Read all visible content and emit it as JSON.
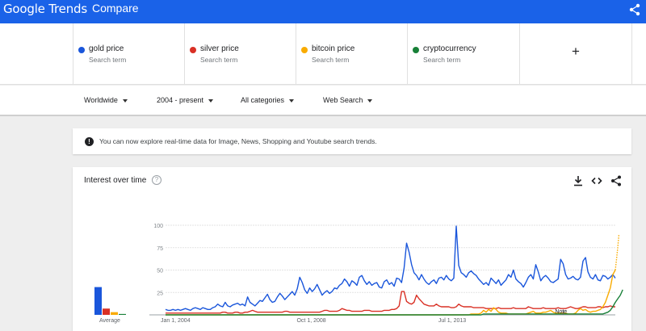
{
  "header": {
    "logo": "Google Trends",
    "title": "Compare"
  },
  "terms": [
    {
      "name": "gold price",
      "type": "Search term",
      "color": "#1a56db"
    },
    {
      "name": "silver price",
      "type": "Search term",
      "color": "#d93025"
    },
    {
      "name": "bitcoin price",
      "type": "Search term",
      "color": "#f9ab00"
    },
    {
      "name": "cryptocurrency",
      "type": "Search term",
      "color": "#188038"
    }
  ],
  "add_term": {
    "icon": "plus-icon",
    "label": "+"
  },
  "filters": {
    "region": "Worldwide",
    "time": "2004 - present",
    "category": "All categories",
    "search_type": "Web Search"
  },
  "banner": {
    "icon": "info-icon",
    "message": "You can now explore real-time data for Image, News, Shopping and Youtube search trends."
  },
  "interest_card": {
    "title": "Interest over time",
    "help_icon": "help-icon",
    "actions": [
      "download-icon",
      "embed-icon",
      "share-icon"
    ]
  },
  "chart_data": {
    "type": "line",
    "ylim": [
      0,
      100
    ],
    "y_ticks": [
      "100",
      "75",
      "50",
      "25"
    ],
    "x_tick_labels": [
      "Jan 1, 2004",
      "Oct 1, 2008",
      "Jul 1, 2013"
    ],
    "annotation": "Note",
    "grid": true,
    "average": {
      "label": "Average",
      "values": [
        31,
        7,
        3,
        1
      ]
    },
    "series": [
      {
        "name": "gold price",
        "color": "#1a56db",
        "values": [
          6,
          5,
          5,
          6,
          5,
          6,
          5,
          6,
          7,
          6,
          5,
          7,
          8,
          7,
          6,
          8,
          7,
          6,
          6,
          8,
          9,
          12,
          10,
          9,
          14,
          10,
          9,
          11,
          12,
          13,
          11,
          12,
          10,
          20,
          14,
          12,
          10,
          13,
          16,
          15,
          19,
          23,
          17,
          14,
          15,
          20,
          24,
          21,
          17,
          20,
          23,
          26,
          22,
          29,
          42,
          36,
          28,
          24,
          30,
          26,
          29,
          34,
          28,
          22,
          25,
          27,
          24,
          26,
          30,
          29,
          33,
          35,
          40,
          37,
          32,
          38,
          36,
          33,
          42,
          44,
          38,
          34,
          37,
          33,
          35,
          36,
          31,
          30,
          37,
          39,
          34,
          36,
          32,
          41,
          40,
          36,
          52,
          80,
          70,
          56,
          47,
          44,
          39,
          45,
          40,
          36,
          34,
          37,
          39,
          35,
          41,
          42,
          39,
          44,
          40,
          38,
          41,
          99,
          55,
          47,
          45,
          42,
          47,
          49,
          46,
          44,
          40,
          37,
          34,
          36,
          33,
          41,
          38,
          35,
          39,
          33,
          36,
          39,
          45,
          42,
          50,
          40,
          37,
          35,
          31,
          36,
          42,
          45,
          40,
          56,
          48,
          38,
          42,
          44,
          41,
          37,
          36,
          38,
          40,
          62,
          57,
          45,
          40,
          41,
          43,
          40,
          39,
          42,
          60,
          64,
          48,
          42,
          40,
          45,
          39,
          38,
          44,
          43,
          40,
          42,
          45,
          41
        ]
      },
      {
        "name": "silver price",
        "color": "#d93025",
        "values": [
          2,
          2,
          2,
          2,
          2,
          2,
          2,
          2,
          2,
          2,
          2,
          2,
          2,
          2,
          2,
          2,
          2,
          2,
          2,
          2,
          2,
          2,
          2,
          3,
          3,
          2,
          2,
          2,
          3,
          3,
          2,
          2,
          3,
          3,
          4,
          5,
          4,
          3,
          3,
          3,
          3,
          3,
          3,
          3,
          3,
          3,
          3,
          3,
          4,
          4,
          3,
          3,
          3,
          3,
          3,
          3,
          3,
          3,
          3,
          3,
          3,
          3,
          3,
          4,
          5,
          5,
          4,
          4,
          4,
          4,
          5,
          7,
          6,
          5,
          5,
          4,
          4,
          4,
          4,
          4,
          5,
          5,
          5,
          4,
          4,
          4,
          4,
          4,
          5,
          5,
          5,
          6,
          6,
          7,
          10,
          26,
          26,
          15,
          13,
          12,
          14,
          22,
          18,
          15,
          12,
          11,
          10,
          10,
          10,
          12,
          10,
          9,
          9,
          9,
          9,
          8,
          8,
          9,
          12,
          10,
          9,
          9,
          9,
          9,
          8,
          8,
          8,
          8,
          8,
          7,
          7,
          7,
          7,
          7,
          8,
          7,
          7,
          7,
          7,
          7,
          8,
          7,
          7,
          7,
          7,
          7,
          9,
          8,
          7,
          7,
          7,
          7,
          8,
          7,
          7,
          7,
          7,
          7,
          8,
          7,
          7,
          7,
          8,
          9,
          8,
          7,
          7,
          8,
          9,
          9,
          8,
          8,
          8,
          8,
          9,
          9,
          8,
          9,
          9,
          10,
          9,
          9
        ]
      },
      {
        "name": "bitcoin price",
        "color": "#f9ab00",
        "values": [
          0,
          0,
          0,
          0,
          0,
          0,
          0,
          0,
          0,
          0,
          0,
          0,
          0,
          0,
          0,
          0,
          0,
          0,
          0,
          0,
          0,
          0,
          0,
          0,
          0,
          0,
          0,
          0,
          0,
          0,
          0,
          0,
          0,
          0,
          0,
          0,
          0,
          0,
          0,
          0,
          0,
          0,
          0,
          0,
          0,
          0,
          0,
          0,
          0,
          0,
          0,
          0,
          0,
          0,
          0,
          0,
          0,
          0,
          0,
          0,
          0,
          0,
          0,
          0,
          0,
          0,
          0,
          0,
          0,
          0,
          0,
          0,
          0,
          0,
          0,
          0,
          0,
          0,
          0,
          0,
          0,
          0,
          0,
          0,
          0,
          0,
          0,
          0,
          0,
          0,
          0,
          0,
          0,
          0,
          0,
          0,
          0,
          0,
          0,
          0,
          0,
          0,
          0,
          0,
          0,
          0,
          0,
          0,
          0,
          0,
          0,
          0,
          0,
          0,
          0,
          0,
          0,
          0,
          0,
          0,
          0,
          0,
          0,
          1,
          1,
          1,
          1,
          2,
          5,
          3,
          6,
          4,
          8,
          6,
          3,
          2,
          2,
          2,
          1,
          1,
          1,
          1,
          1,
          1,
          1,
          1,
          2,
          3,
          4,
          2,
          2,
          2,
          3,
          3,
          4,
          5,
          3,
          2,
          2,
          2,
          2,
          2,
          1,
          1,
          1,
          2,
          5,
          7,
          5,
          6,
          4,
          3,
          4,
          4,
          5,
          6,
          9,
          14,
          22,
          30,
          45,
          50
        ]
      },
      {
        "name": "cryptocurrency",
        "color": "#188038",
        "values": [
          0,
          0,
          0,
          0,
          0,
          0,
          0,
          0,
          0,
          0,
          0,
          0,
          0,
          0,
          0,
          0,
          0,
          0,
          0,
          0,
          0,
          0,
          0,
          0,
          0,
          0,
          0,
          0,
          0,
          0,
          0,
          0,
          0,
          0,
          0,
          0,
          0,
          0,
          0,
          0,
          0,
          0,
          0,
          0,
          0,
          0,
          0,
          0,
          0,
          0,
          0,
          0,
          0,
          0,
          0,
          0,
          0,
          0,
          0,
          0,
          0,
          0,
          0,
          0,
          0,
          0,
          0,
          0,
          0,
          0,
          0,
          0,
          0,
          0,
          0,
          0,
          0,
          0,
          0,
          0,
          0,
          0,
          0,
          0,
          0,
          0,
          0,
          0,
          0,
          0,
          0,
          0,
          0,
          0,
          0,
          0,
          0,
          0,
          0,
          0,
          0,
          0,
          0,
          0,
          0,
          0,
          0,
          0,
          0,
          0,
          0,
          0,
          0,
          0,
          0,
          0,
          0,
          0,
          0,
          0,
          0,
          0,
          0,
          0,
          0,
          0,
          0,
          0,
          1,
          1,
          1,
          1,
          1,
          1,
          1,
          1,
          1,
          1,
          1,
          1,
          1,
          1,
          1,
          1,
          1,
          1,
          1,
          1,
          1,
          1,
          1,
          1,
          1,
          1,
          1,
          1,
          1,
          1,
          1,
          1,
          1,
          1,
          1,
          1,
          1,
          1,
          1,
          1,
          1,
          1,
          1,
          1,
          1,
          1,
          1,
          1,
          1,
          2,
          3,
          5,
          9,
          14,
          18,
          22,
          28
        ]
      }
    ],
    "partial_data_tail": {
      "series": "bitcoin price",
      "values": [
        50,
        62,
        75,
        90
      ]
    }
  }
}
